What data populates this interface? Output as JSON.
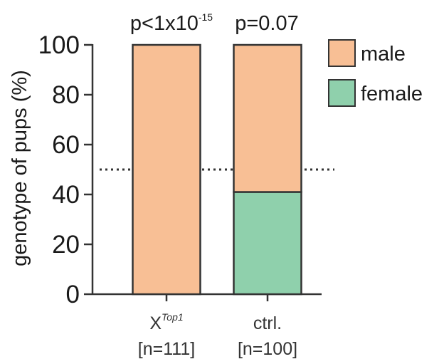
{
  "chart_data": {
    "type": "bar",
    "stacked": true,
    "ylabel": "genotype of pups (%)",
    "ylim": [
      0,
      100
    ],
    "yticks": [
      0,
      20,
      40,
      60,
      80,
      100
    ],
    "reference_line": {
      "y": 50,
      "style": "dotted"
    },
    "categories": [
      {
        "label_base": "X",
        "label_sup": "Top1",
        "n_label": "[n=111]",
        "pvalue": {
          "prefix": "p<1x10",
          "exponent": "-15"
        }
      },
      {
        "label_base": "ctrl.",
        "label_sup": "",
        "n_label": "[n=100]",
        "pvalue": {
          "prefix": "p=0.07",
          "exponent": ""
        }
      }
    ],
    "series": [
      {
        "name": "female",
        "values": [
          0,
          41
        ],
        "color": "#8fd0ac"
      },
      {
        "name": "male",
        "values": [
          100,
          59
        ],
        "color": "#f8bf95"
      }
    ],
    "legend": {
      "position": "right",
      "items": [
        {
          "label": "male",
          "color": "#f8bf95"
        },
        {
          "label": "female",
          "color": "#8fd0ac"
        }
      ]
    }
  }
}
